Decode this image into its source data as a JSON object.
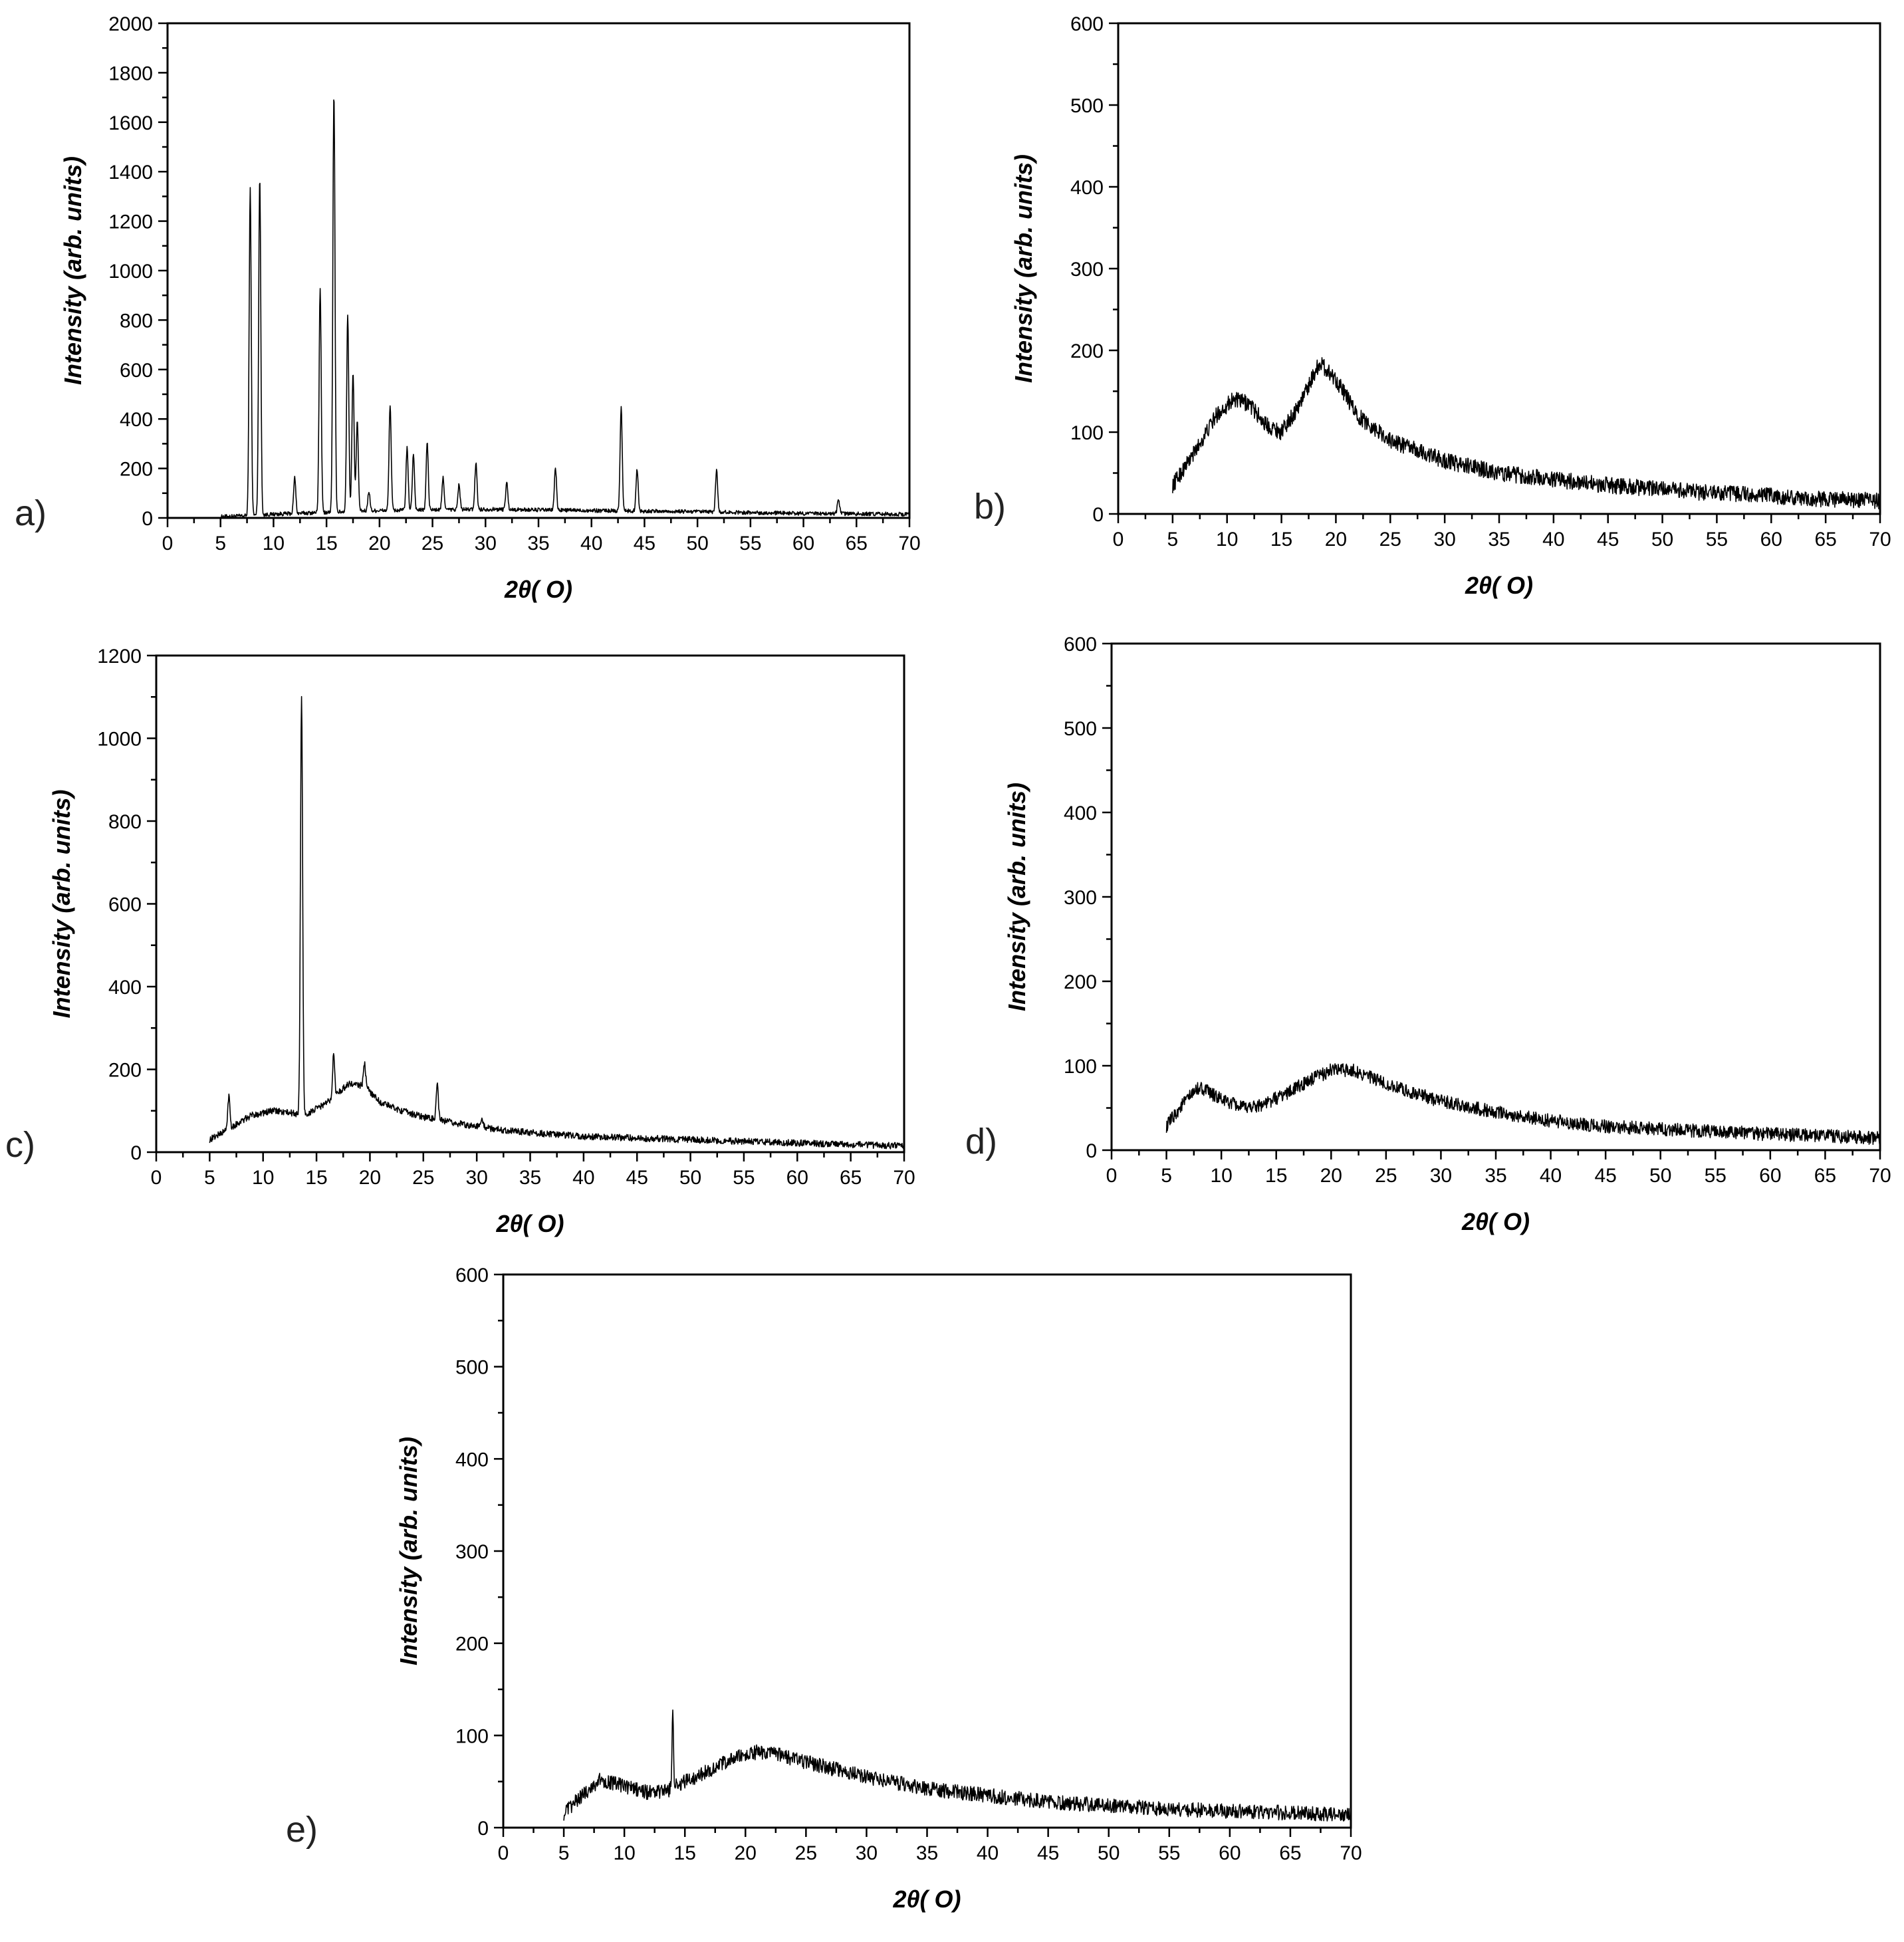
{
  "chart_data": [
    {
      "type": "line",
      "panel_label": "a)",
      "xlabel": "2θ( O)",
      "ylabel": "Intensity (arb. units)",
      "xlim": [
        0,
        70
      ],
      "ylim": [
        0,
        2000
      ],
      "xticks": [
        0,
        5,
        10,
        15,
        20,
        25,
        30,
        35,
        40,
        45,
        50,
        55,
        60,
        65,
        70
      ],
      "yticks": [
        0,
        200,
        400,
        600,
        800,
        1000,
        1200,
        1400,
        1600,
        1800,
        2000
      ],
      "x_range": [
        5,
        70
      ],
      "baseline": [
        [
          5,
          5
        ],
        [
          7,
          8
        ],
        [
          10,
          15
        ],
        [
          20,
          30
        ],
        [
          30,
          35
        ],
        [
          40,
          30
        ],
        [
          50,
          25
        ],
        [
          60,
          18
        ],
        [
          70,
          15
        ]
      ],
      "noise": 8,
      "peaks": [
        [
          7.8,
          1320
        ],
        [
          8.7,
          1370
        ],
        [
          12.0,
          145
        ],
        [
          14.4,
          900
        ],
        [
          15.7,
          1700
        ],
        [
          17.0,
          800
        ],
        [
          17.5,
          560
        ],
        [
          17.9,
          360
        ],
        [
          19.0,
          80
        ],
        [
          21.0,
          430
        ],
        [
          22.6,
          250
        ],
        [
          23.2,
          230
        ],
        [
          24.5,
          270
        ],
        [
          26.0,
          130
        ],
        [
          27.5,
          100
        ],
        [
          29.1,
          190
        ],
        [
          32.0,
          110
        ],
        [
          36.6,
          170
        ],
        [
          42.8,
          420
        ],
        [
          44.3,
          170
        ],
        [
          51.8,
          170
        ],
        [
          63.3,
          60
        ]
      ],
      "peak_width": 0.1
    },
    {
      "type": "line",
      "panel_label": "b)",
      "xlabel": "2θ( O)",
      "ylabel": "Intensity (arb. units)",
      "xlim": [
        0,
        70
      ],
      "ylim": [
        0,
        600
      ],
      "xticks": [
        0,
        5,
        10,
        15,
        20,
        25,
        30,
        35,
        40,
        45,
        50,
        55,
        60,
        65,
        70
      ],
      "yticks": [
        0,
        100,
        200,
        300,
        400,
        500,
        600
      ],
      "x_range": [
        5,
        70
      ],
      "baseline": [
        [
          5,
          35
        ],
        [
          7,
          75
        ],
        [
          9,
          120
        ],
        [
          10.5,
          140
        ],
        [
          12,
          135
        ],
        [
          13.5,
          110
        ],
        [
          15,
          100
        ],
        [
          16.5,
          130
        ],
        [
          18.5,
          185
        ],
        [
          20,
          165
        ],
        [
          22,
          120
        ],
        [
          25,
          90
        ],
        [
          30,
          65
        ],
        [
          35,
          50
        ],
        [
          40,
          42
        ],
        [
          45,
          35
        ],
        [
          50,
          30
        ],
        [
          55,
          25
        ],
        [
          60,
          22
        ],
        [
          65,
          18
        ],
        [
          70,
          16
        ]
      ],
      "noise": 10,
      "peaks": [],
      "peak_width": 0.1
    },
    {
      "type": "line",
      "panel_label": "c)",
      "xlabel": "2θ( O)",
      "ylabel": "Intensity (arb. units)",
      "xlim": [
        0,
        70
      ],
      "ylim": [
        0,
        1200
      ],
      "xticks": [
        0,
        5,
        10,
        15,
        20,
        25,
        30,
        35,
        40,
        45,
        50,
        55,
        60,
        65,
        70
      ],
      "yticks": [
        0,
        200,
        400,
        600,
        800,
        1000,
        1200
      ],
      "x_range": [
        5,
        70
      ],
      "baseline": [
        [
          5,
          30
        ],
        [
          7,
          60
        ],
        [
          9,
          90
        ],
        [
          11,
          100
        ],
        [
          12.5,
          95
        ],
        [
          14,
          90
        ],
        [
          16,
          120
        ],
        [
          18,
          165
        ],
        [
          19.5,
          160
        ],
        [
          21,
          120
        ],
        [
          23,
          100
        ],
        [
          25,
          85
        ],
        [
          28,
          70
        ],
        [
          32,
          55
        ],
        [
          36,
          45
        ],
        [
          40,
          38
        ],
        [
          50,
          30
        ],
        [
          60,
          22
        ],
        [
          70,
          15
        ]
      ],
      "noise": 8,
      "peaks": [
        [
          6.8,
          80
        ],
        [
          13.6,
          1010
        ],
        [
          16.6,
          100
        ],
        [
          19.5,
          55
        ],
        [
          26.3,
          85
        ],
        [
          30.5,
          20
        ]
      ],
      "peak_width": 0.1
    },
    {
      "type": "line",
      "panel_label": "d)",
      "xlabel": "2θ( O)",
      "ylabel": "Intensity (arb. units)",
      "xlim": [
        0,
        70
      ],
      "ylim": [
        0,
        600
      ],
      "xticks": [
        0,
        5,
        10,
        15,
        20,
        25,
        30,
        35,
        40,
        45,
        50,
        55,
        60,
        65,
        70
      ],
      "yticks": [
        0,
        100,
        200,
        300,
        400,
        500,
        600
      ],
      "x_range": [
        5,
        70
      ],
      "baseline": [
        [
          5,
          28
        ],
        [
          6.5,
          55
        ],
        [
          8,
          75
        ],
        [
          10,
          60
        ],
        [
          12,
          50
        ],
        [
          14,
          55
        ],
        [
          16,
          68
        ],
        [
          18,
          82
        ],
        [
          20,
          95
        ],
        [
          22,
          95
        ],
        [
          25,
          78
        ],
        [
          30,
          58
        ],
        [
          35,
          45
        ],
        [
          40,
          35
        ],
        [
          45,
          28
        ],
        [
          50,
          25
        ],
        [
          55,
          22
        ],
        [
          60,
          19
        ],
        [
          65,
          17
        ],
        [
          70,
          14
        ]
      ],
      "noise": 8,
      "peaks": [],
      "peak_width": 0.1
    },
    {
      "type": "line",
      "panel_label": "e)",
      "xlabel": "2θ( O)",
      "ylabel": "Intensity (arb. units)",
      "xlim": [
        0,
        70
      ],
      "ylim": [
        0,
        600
      ],
      "xticks": [
        0,
        5,
        10,
        15,
        20,
        25,
        30,
        35,
        40,
        45,
        50,
        55,
        60,
        65,
        70
      ],
      "yticks": [
        0,
        100,
        200,
        300,
        400,
        500,
        600
      ],
      "x_range": [
        5,
        70
      ],
      "baseline": [
        [
          5,
          15
        ],
        [
          6.5,
          35
        ],
        [
          8,
          52
        ],
        [
          10,
          45
        ],
        [
          12,
          38
        ],
        [
          13.5,
          40
        ],
        [
          15,
          50
        ],
        [
          17,
          62
        ],
        [
          19,
          75
        ],
        [
          21,
          82
        ],
        [
          23,
          78
        ],
        [
          26,
          68
        ],
        [
          30,
          55
        ],
        [
          35,
          42
        ],
        [
          40,
          35
        ],
        [
          45,
          28
        ],
        [
          50,
          24
        ],
        [
          55,
          20
        ],
        [
          60,
          18
        ],
        [
          65,
          16
        ],
        [
          70,
          14
        ]
      ],
      "noise": 8,
      "peaks": [
        [
          14.0,
          90
        ]
      ],
      "peak_width": 0.06
    }
  ]
}
